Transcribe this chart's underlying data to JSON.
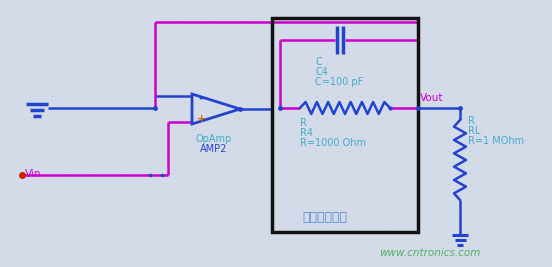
{
  "bg_color": "#d4dbe8",
  "dot_color": "#b8bfcc",
  "blue": "#2244cc",
  "magenta": "#cc00cc",
  "red": "#cc2200",
  "text_blue": "#5588dd",
  "text_cyan": "#44aacc",
  "text_magenta": "#cc00cc",
  "text_green": "#44aa55",
  "box_color": "#111111",
  "watermark": "www.cntronics.com",
  "label_vin": "Vin",
  "label_vout": "Vout",
  "label_opamp_1": "OpAmp",
  "label_opamp_2": "AMP2",
  "label_c1": "C",
  "label_c2": "C4",
  "label_c3": "C=100 pF",
  "label_r1": "R",
  "label_r2": "R4",
  "label_r3": "R=1000 Ohm",
  "label_rl1": "R",
  "label_rl2": "RL",
  "label_rl3": "R=1 MOhm",
  "label_box": "脉冲增强电路"
}
